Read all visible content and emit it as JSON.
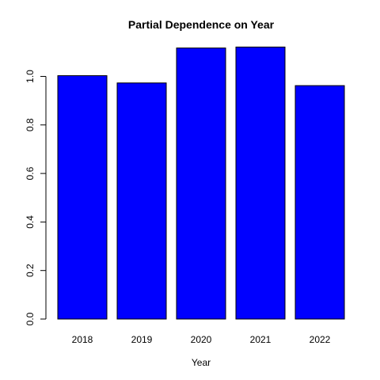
{
  "chart_data": {
    "type": "bar",
    "title": "Partial Dependence on Year",
    "xlabel": "Year",
    "ylabel": "",
    "categories": [
      "2018",
      "2019",
      "2020",
      "2021",
      "2022"
    ],
    "values": [
      1.003,
      0.973,
      1.117,
      1.121,
      0.962
    ],
    "ylim": [
      0,
      1.2
    ],
    "yticks": [
      0.0,
      0.2,
      0.4,
      0.6,
      0.8,
      1.0
    ],
    "ytick_labels": [
      "0.0",
      "0.2",
      "0.4",
      "0.6",
      "0.8",
      "1.0"
    ],
    "bar_color": "#0000ff",
    "grid": false,
    "legend": "none"
  }
}
